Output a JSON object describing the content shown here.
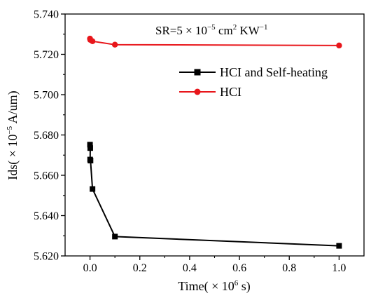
{
  "chart_data": {
    "type": "line",
    "xlabel_prefix": "Time( × 10",
    "xlabel_sup": "6",
    "xlabel_suffix": " s)",
    "ylabel_prefix": "Ids( × 10",
    "ylabel_sup": "−5",
    "ylabel_suffix": " A/um)",
    "annotation": {
      "prefix": "SR=5 × 10",
      "sup1": "−5",
      "mid": " cm",
      "sup2": "2",
      "suffix": " KW",
      "sup3": "−1"
    },
    "xlim": [
      -0.1,
      1.1
    ],
    "ylim": [
      5.62,
      5.74
    ],
    "x_ticks": [
      "0.0",
      "0.2",
      "0.4",
      "0.6",
      "0.8",
      "1.0"
    ],
    "y_ticks": [
      "5.620",
      "5.640",
      "5.660",
      "5.680",
      "5.700",
      "5.720",
      "5.740"
    ],
    "legend_position": "right, upper-middle",
    "grid": false,
    "series": [
      {
        "name": "HCI and Self-heating",
        "color": "#000000",
        "marker": "square",
        "x": [
          0.0,
          0.001,
          0.0005,
          0.002,
          0.01,
          0.1,
          1.0
        ],
        "y": [
          5.6752,
          5.6735,
          5.6678,
          5.6673,
          5.6532,
          5.6296,
          5.625
        ]
      },
      {
        "name": "HCI",
        "color": "#e8161b",
        "marker": "circle",
        "x": [
          0.0,
          0.001,
          0.01,
          0.1,
          1.0
        ],
        "y": [
          5.7278,
          5.7272,
          5.7265,
          5.7248,
          5.7244
        ]
      }
    ]
  }
}
